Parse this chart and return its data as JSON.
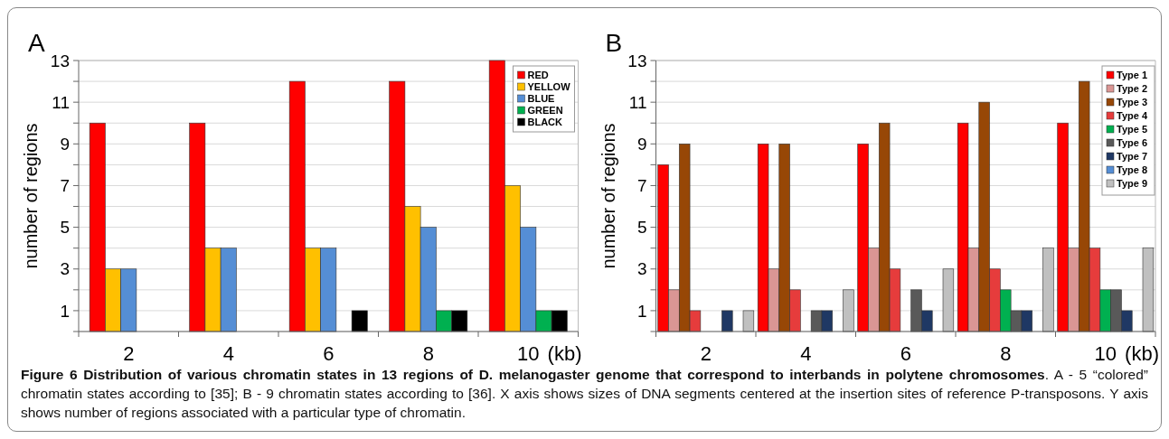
{
  "chart_data": [
    {
      "type": "bar",
      "title": "A",
      "xlabel": "(kb)",
      "ylabel": "number of regions",
      "categories": [
        "2",
        "4",
        "6",
        "8",
        "10"
      ],
      "series": [
        {
          "name": "RED",
          "color": "#ff0000",
          "values": [
            10,
            10,
            12,
            12,
            13
          ]
        },
        {
          "name": "YELLOW",
          "color": "#ffc000",
          "values": [
            3,
            4,
            4,
            6,
            7
          ]
        },
        {
          "name": "BLUE",
          "color": "#558ed5",
          "values": [
            3,
            4,
            4,
            5,
            5
          ]
        },
        {
          "name": "GREEN",
          "color": "#00b050",
          "values": [
            null,
            null,
            null,
            1,
            1
          ]
        },
        {
          "name": "BLACK",
          "color": "#000000",
          "values": [
            null,
            null,
            1,
            1,
            1
          ]
        }
      ],
      "ylim": [
        0,
        13
      ],
      "yticks": [
        {
          "value": 0,
          "label": null
        },
        1,
        {
          "value": 2,
          "label": null
        },
        3,
        {
          "value": 4,
          "label": null
        },
        5,
        {
          "value": 6,
          "label": null
        },
        7,
        {
          "value": 8,
          "label": null
        },
        9,
        {
          "value": 10,
          "label": null
        },
        11,
        {
          "value": 12,
          "label": null
        },
        13
      ],
      "grid": "y",
      "legend": "top right",
      "annotations": [
        "Figure 6 Distribution of various chromatin states in 13 regions of D. melanogaster genome that correspond to interbands in polytene chromosomes",
        ". A - 5 “colored” chromatin states according to [35]; B - 9 chromatin states according to [36]. X axis shows sizes of DNA segments centered at the insertion sites of reference P-transposons. Y axis shows number of regions associated with a particular type of chromatin."
      ]
    },
    {
      "type": "bar",
      "title": "B",
      "xlabel": "(kb)",
      "ylabel": "number of regions",
      "categories": [
        "2",
        "4",
        "6",
        "8",
        "10"
      ],
      "series": [
        {
          "name": "Type 1",
          "color": "#ff0000",
          "values": [
            8,
            9,
            9,
            10,
            10
          ]
        },
        {
          "name": "Type 2",
          "color": "#da9694",
          "values": [
            2,
            3,
            4,
            4,
            4
          ]
        },
        {
          "name": "Type 3",
          "color": "#974706",
          "values": [
            9,
            9,
            10,
            11,
            12
          ]
        },
        {
          "name": "Type 4",
          "color": "#e63c3c",
          "values": [
            1,
            2,
            3,
            3,
            4
          ]
        },
        {
          "name": "Type 5",
          "color": "#00b050",
          "values": [
            null,
            null,
            null,
            2,
            2
          ]
        },
        {
          "name": "Type 6",
          "color": "#595959",
          "values": [
            null,
            1,
            2,
            1,
            2
          ]
        },
        {
          "name": "Type 7",
          "color": "#1f3864",
          "values": [
            1,
            1,
            1,
            1,
            1
          ]
        },
        {
          "name": "Type 8",
          "color": "#558ed5",
          "values": [
            null,
            null,
            null,
            null,
            null
          ]
        },
        {
          "name": "Type 9",
          "color": "#c0c0c0",
          "values": [
            1,
            2,
            3,
            4,
            4
          ]
        }
      ],
      "ylim": [
        0,
        13
      ],
      "yticks": [
        {
          "value": 0,
          "label": null
        },
        1,
        {
          "value": 2,
          "label": null
        },
        3,
        {
          "value": 4,
          "label": null
        },
        5,
        {
          "value": 6,
          "label": null
        },
        7,
        {
          "value": 8,
          "label": null
        },
        9,
        {
          "value": 10,
          "label": null
        },
        11,
        {
          "value": 12,
          "label": null
        },
        13
      ],
      "grid": "y",
      "legend": "top right"
    }
  ]
}
